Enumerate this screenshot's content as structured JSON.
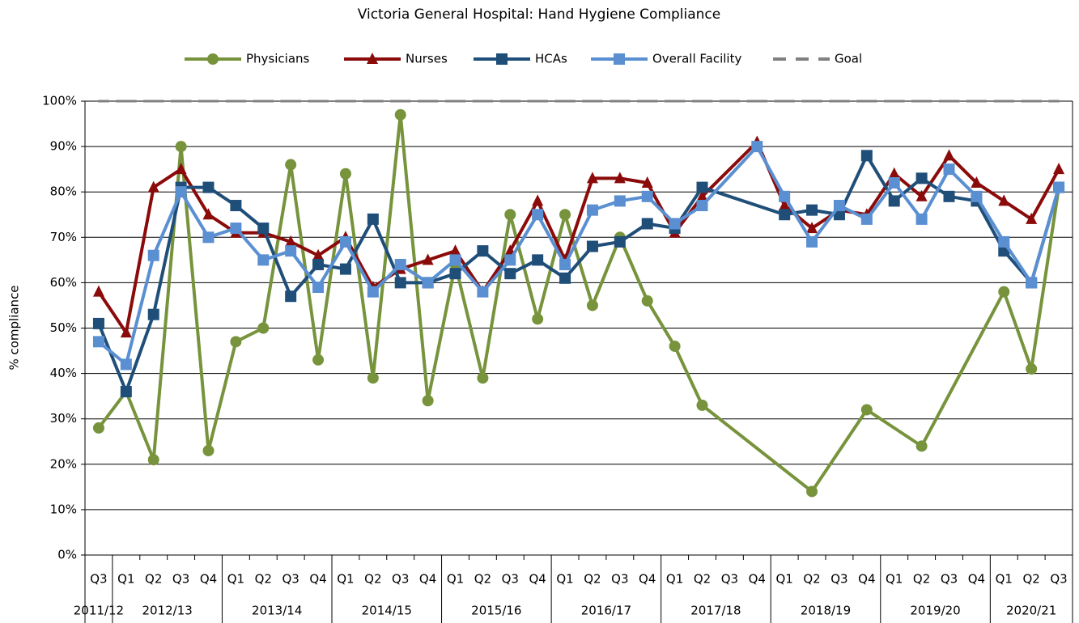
{
  "chart_data": {
    "type": "line",
    "title": "Victoria General Hospital: Hand Hygiene Compliance",
    "y_label": "% compliance",
    "category_groups": [
      {
        "label": "2011/12",
        "categories": [
          "Q3"
        ]
      },
      {
        "label": "2012/13",
        "categories": [
          "Q1",
          "Q2",
          "Q3",
          "Q4"
        ]
      },
      {
        "label": "2013/14",
        "categories": [
          "Q1",
          "Q2",
          "Q3",
          "Q4"
        ]
      },
      {
        "label": "2014/15",
        "categories": [
          "Q1",
          "Q2",
          "Q3",
          "Q4"
        ]
      },
      {
        "label": "2015/16",
        "categories": [
          "Q1",
          "Q2",
          "Q3",
          "Q4"
        ]
      },
      {
        "label": "2016/17",
        "categories": [
          "Q1",
          "Q2",
          "Q3",
          "Q4"
        ]
      },
      {
        "label": "2017/18",
        "categories": [
          "Q1",
          "Q2",
          "Q3",
          "Q4"
        ]
      },
      {
        "label": "2018/19",
        "categories": [
          "Q1",
          "Q2",
          "Q3",
          "Q4"
        ]
      },
      {
        "label": "2019/20",
        "categories": [
          "Q1",
          "Q2",
          "Q3",
          "Q4"
        ]
      },
      {
        "label": "2020/21",
        "categories": [
          "Q1",
          "Q2",
          "Q3"
        ]
      }
    ],
    "ylim": [
      0,
      100
    ],
    "yticks": [
      {
        "value": 0,
        "label": "0%"
      },
      {
        "value": 10,
        "label": "10%"
      },
      {
        "value": 20,
        "label": "20%"
      },
      {
        "value": 30,
        "label": "30%"
      },
      {
        "value": 40,
        "label": "40%"
      },
      {
        "value": 50,
        "label": "50%"
      },
      {
        "value": 60,
        "label": "60%"
      },
      {
        "value": 70,
        "label": "70%"
      },
      {
        "value": 80,
        "label": "80%"
      },
      {
        "value": 90,
        "label": "90%"
      },
      {
        "value": 100,
        "label": "100%"
      }
    ],
    "grid": true,
    "connect_gaps": true,
    "legend": "top",
    "series": [
      {
        "name": "Physicians",
        "color": "#77933c",
        "marker": "circle",
        "values": [
          28,
          36,
          21,
          90,
          23,
          47,
          50,
          86,
          43,
          84,
          39,
          97,
          34,
          64,
          39,
          75,
          52,
          75,
          55,
          70,
          56,
          46,
          33,
          null,
          null,
          null,
          14,
          null,
          32,
          null,
          24,
          null,
          null,
          58,
          41,
          81
        ]
      },
      {
        "name": "Nurses",
        "color": "#8b0a0a",
        "marker": "triangle",
        "values": [
          58,
          49,
          81,
          85,
          75,
          71,
          71,
          69,
          66,
          70,
          59,
          63,
          65,
          67,
          58,
          67,
          78,
          65,
          83,
          83,
          82,
          71,
          79,
          null,
          91,
          77,
          72,
          76,
          75,
          84,
          79,
          88,
          82,
          78,
          74,
          85
        ]
      },
      {
        "name": "HCAs",
        "color": "#1f4e79",
        "marker": "square",
        "values": [
          51,
          36,
          53,
          81,
          81,
          77,
          72,
          57,
          64,
          63,
          74,
          60,
          60,
          62,
          67,
          62,
          65,
          61,
          68,
          69,
          73,
          72,
          81,
          null,
          null,
          75,
          76,
          75,
          88,
          78,
          83,
          79,
          78,
          67,
          60,
          81
        ]
      },
      {
        "name": "Overall Facility",
        "color": "#5a8fd2",
        "marker": "square",
        "values": [
          47,
          42,
          66,
          80,
          70,
          72,
          65,
          67,
          59,
          69,
          58,
          64,
          60,
          65,
          58,
          65,
          75,
          64,
          76,
          78,
          79,
          73,
          77,
          null,
          90,
          79,
          69,
          77,
          74,
          82,
          74,
          85,
          79,
          69,
          60,
          81
        ]
      },
      {
        "name": "Goal",
        "color": "#808080",
        "marker": "none",
        "dash": true,
        "values": [
          100,
          100,
          100,
          100,
          100,
          100,
          100,
          100,
          100,
          100,
          100,
          100,
          100,
          100,
          100,
          100,
          100,
          100,
          100,
          100,
          100,
          100,
          100,
          100,
          100,
          100,
          100,
          100,
          100,
          100,
          100,
          100,
          100,
          100,
          100,
          100
        ]
      }
    ]
  }
}
